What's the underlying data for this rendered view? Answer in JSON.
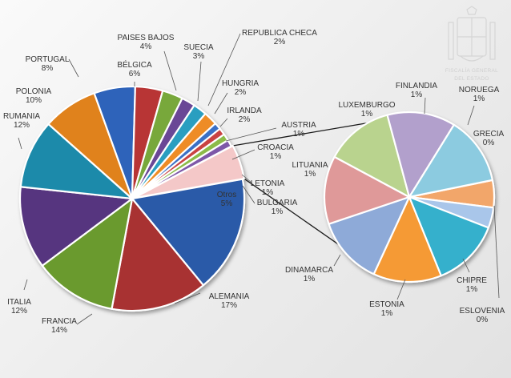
{
  "watermark": {
    "lines": [
      "FISCALÍA GENERAL",
      "DEL ESTADO"
    ]
  },
  "chart_data": [
    {
      "type": "pie",
      "slices": [
        {
          "name": "ALEMANIA",
          "value": 17,
          "label": "17%",
          "color": "#2c5aa8"
        },
        {
          "name": "FRANCIA",
          "value": 14,
          "label": "14%",
          "color": "#a83232"
        },
        {
          "name": "ITALIA",
          "value": 12,
          "label": "12%",
          "color": "#6a9a2e"
        },
        {
          "name": "RUMANIA",
          "value": 12,
          "label": "12%",
          "color": "#56357f"
        },
        {
          "name": "POLONIA",
          "value": 10,
          "label": "10%",
          "color": "#1e8aaa"
        },
        {
          "name": "PORTUGAL",
          "value": 8,
          "label": "8%",
          "color": "#e0821e"
        },
        {
          "name": "BÉLGICA",
          "value": 6,
          "label": "6%",
          "color": "#2d63ba"
        },
        {
          "name": "PAISES BAJOS",
          "value": 4,
          "label": "4%",
          "color": "#b83535"
        },
        {
          "name": "SUECIA",
          "value": 3,
          "label": "3%",
          "color": "#78a83a"
        },
        {
          "name": "REPUBLICA CHECA",
          "value": 2,
          "label": "2%",
          "color": "#6b4796"
        },
        {
          "name": "HUNGRIA",
          "value": 2,
          "label": "2%",
          "color": "#2a9ec0"
        },
        {
          "name": "IRLANDA",
          "value": 2,
          "label": "2%",
          "color": "#ee8c25"
        },
        {
          "name": "AUSTRIA",
          "value": 1,
          "label": "1%",
          "color": "#3a70c6"
        },
        {
          "name": "CROACIA",
          "value": 1,
          "label": "1%",
          "color": "#c94242"
        },
        {
          "name": "LETONIA",
          "value": 1,
          "label": "1%",
          "color": "#8cbb4a"
        },
        {
          "name": "BULGARIA",
          "value": 1,
          "label": "1%",
          "color": "#7e58a8"
        },
        {
          "name": "Otros",
          "value": 5,
          "label": "5%",
          "color": "#f4c8c8"
        }
      ]
    },
    {
      "type": "pie",
      "slices": [
        {
          "name": "GRECIA",
          "value": 0.4,
          "label": "0%",
          "color": "#f2a66a"
        },
        {
          "name": "ESLOVENIA",
          "value": 0.3,
          "label": "0%",
          "color": "#a9c6ea"
        },
        {
          "name": "CHIPRE",
          "value": 1,
          "label": "1%",
          "color": "#34b0cc"
        },
        {
          "name": "ESTONIA",
          "value": 1,
          "label": "1%",
          "color": "#f59a35"
        },
        {
          "name": "DINAMARCA",
          "value": 1,
          "label": "1%",
          "color": "#8eaad8"
        },
        {
          "name": "LITUANIA",
          "value": 1,
          "label": "1%",
          "color": "#df9999"
        },
        {
          "name": "LUXEMBURGO",
          "value": 1,
          "label": "1%",
          "color": "#b9d38e"
        },
        {
          "name": "FINLANDIA",
          "value": 1,
          "label": "1%",
          "color": "#b2a0cc"
        },
        {
          "name": "NORUEGA",
          "value": 1,
          "label": "1%",
          "color": "#8ccbe0"
        }
      ]
    }
  ]
}
